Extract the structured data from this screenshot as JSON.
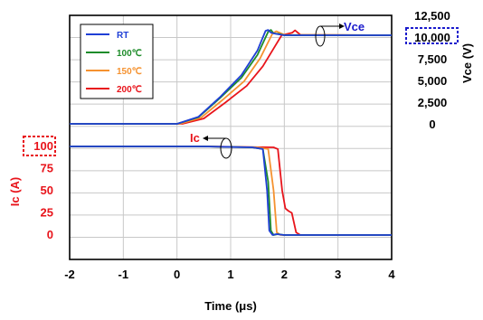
{
  "chart_data": {
    "type": "line",
    "xlabel": "Time  (μs)",
    "xlim": [
      -2,
      4
    ],
    "x_ticks": [
      "-2",
      "-1",
      "0",
      "1",
      "2",
      "3",
      "4"
    ],
    "y_right": {
      "label": "Vce  (V)",
      "ylim": [
        0,
        12500
      ],
      "ticks": [
        "12,500",
        "10,000",
        "7,500",
        "5,000",
        "2,500",
        "0"
      ],
      "highlighted_tick": "10,000",
      "color": "#000000",
      "highlight_color": "#1a1acc"
    },
    "y_left": {
      "label": "Ic  (A)",
      "ylim": [
        0,
        100
      ],
      "ticks": [
        "100",
        "75",
        "50",
        "25",
        "0"
      ],
      "highlighted_tick": "100",
      "color": "#e8141b"
    },
    "grid": true,
    "legend_position": "top-left",
    "annotations": [
      {
        "text": "Vce",
        "color": "#1a1acc"
      },
      {
        "text": "Ic",
        "color": "#e8141b"
      }
    ],
    "series": [
      {
        "name": "RT",
        "color": "#1f3fd6",
        "vce": {
          "x": [
            -2,
            0,
            0.4,
            0.8,
            1.2,
            1.5,
            1.65,
            1.7,
            1.75,
            1.85,
            2,
            4
          ],
          "y": [
            0,
            0,
            800,
            3000,
            5500,
            8300,
            10500,
            10600,
            10300,
            10150,
            10000,
            10000
          ]
        },
        "ic": {
          "x": [
            -2,
            0.5,
            1.4,
            1.6,
            1.68,
            1.72,
            1.78,
            1.85,
            2,
            4
          ],
          "y": [
            100,
            100,
            99,
            97,
            50,
            5,
            0,
            1,
            0,
            0
          ]
        }
      },
      {
        "name": "100℃",
        "color": "#1e8c2a",
        "vce": {
          "x": [
            -2,
            0,
            0.4,
            0.8,
            1.2,
            1.5,
            1.7,
            1.75,
            1.8,
            1.9,
            2,
            4
          ],
          "y": [
            0,
            0,
            750,
            2900,
            5200,
            7800,
            10400,
            10600,
            10200,
            10150,
            10000,
            10000
          ]
        },
        "ic": {
          "x": [
            -2,
            0.5,
            1.4,
            1.6,
            1.7,
            1.75,
            1.8,
            1.88,
            2,
            4
          ],
          "y": [
            100,
            100,
            99,
            97,
            60,
            5,
            0,
            1,
            0,
            0
          ]
        }
      },
      {
        "name": "150℃",
        "color": "#f59230",
        "vce": {
          "x": [
            -2,
            0.05,
            0.45,
            0.85,
            1.25,
            1.55,
            1.78,
            1.85,
            2.0,
            4
          ],
          "y": [
            0,
            0,
            700,
            2700,
            4800,
            7400,
            10200,
            10450,
            10050,
            10000
          ]
        },
        "ic": {
          "x": [
            -2,
            0.5,
            1.5,
            1.7,
            1.8,
            1.86,
            1.93,
            2.05,
            4
          ],
          "y": [
            100,
            100,
            99,
            97,
            50,
            3,
            0,
            0,
            0
          ]
        }
      },
      {
        "name": "200℃",
        "color": "#e8141b",
        "vce": {
          "x": [
            -2,
            0.1,
            0.5,
            0.9,
            1.3,
            1.6,
            1.8,
            1.95,
            2.15,
            2.2,
            2.3,
            4
          ],
          "y": [
            0,
            0,
            600,
            2400,
            4300,
            6500,
            8500,
            10000,
            10300,
            10550,
            10050,
            10000
          ]
        },
        "ic": {
          "x": [
            -2,
            0.5,
            1.8,
            1.88,
            1.96,
            2.02,
            2.08,
            2.14,
            2.22,
            2.3,
            4
          ],
          "y": [
            100,
            100,
            99,
            97,
            50,
            30,
            27,
            25,
            3,
            0,
            0
          ]
        }
      }
    ]
  }
}
